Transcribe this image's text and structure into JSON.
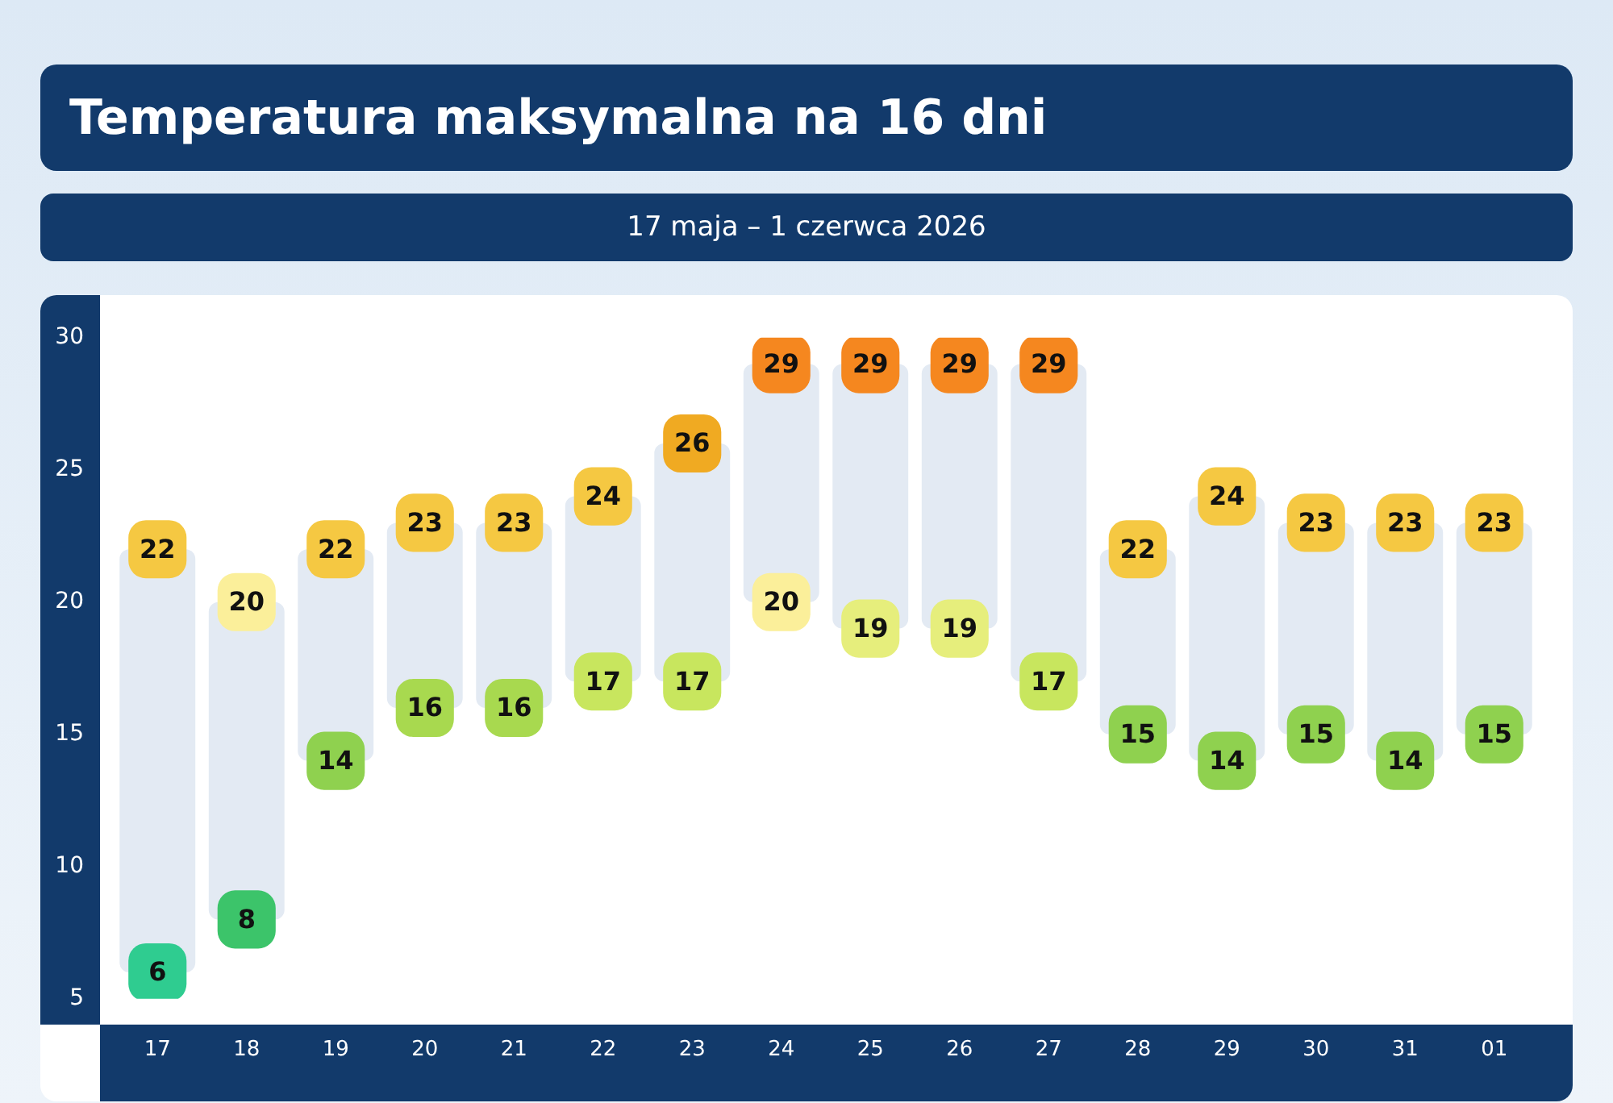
{
  "chart_data": {
    "type": "bar",
    "title": "Temperatura maksymalna na 16 dni",
    "subtitle": "17 maja – 1 czerwca 2026",
    "categories": [
      "17",
      "18",
      "19",
      "20",
      "21",
      "22",
      "23",
      "24",
      "25",
      "26",
      "27",
      "28",
      "29",
      "30",
      "31",
      "01"
    ],
    "ylim": [
      5,
      30
    ],
    "yticks": [
      5,
      10,
      15,
      20,
      25,
      30
    ],
    "grid": false,
    "legend": false,
    "series": [
      {
        "color": "#e3eaf3",
        "base": [
          6,
          8,
          14,
          16,
          16,
          17,
          17,
          20,
          19,
          19,
          17,
          15,
          14,
          15,
          14,
          15
        ],
        "values": [
          16,
          12,
          8,
          7,
          7,
          7,
          9,
          9,
          10,
          10,
          12,
          7,
          10,
          8,
          9,
          8
        ]
      },
      {
        "type": "scatter",
        "marker": "square",
        "values": [
          22,
          20,
          22,
          23,
          23,
          24,
          26,
          29,
          29,
          29,
          29,
          22,
          24,
          23,
          23,
          23
        ],
        "value_labels": [
          "22",
          "20",
          "22",
          "23",
          "23",
          "24",
          "26",
          "29",
          "29",
          "29",
          "29",
          "22",
          "24",
          "23",
          "23",
          "23"
        ],
        "colors": [
          "#f5c842",
          "#fbef9a",
          "#f5c842",
          "#f5c842",
          "#f5c842",
          "#f5c842",
          "#f0aa22",
          "#f5871f",
          "#f5871f",
          "#f5871f",
          "#f5871f",
          "#f5c842",
          "#f5c842",
          "#f5c842",
          "#f5c842",
          "#f5c842"
        ]
      },
      {
        "type": "scatter",
        "marker": "square",
        "values": [
          6,
          8,
          14,
          16,
          16,
          17,
          17,
          20,
          19,
          19,
          17,
          15,
          14,
          15,
          14,
          15
        ],
        "value_labels": [
          "6",
          "8",
          "14",
          "16",
          "16",
          "17",
          "17",
          "20",
          "19",
          "19",
          "17",
          "15",
          "14",
          "15",
          "14",
          "15"
        ],
        "colors": [
          "#2fcc90",
          "#3cc46a",
          "#8fd14f",
          "#a8d94f",
          "#a8d94f",
          "#c8e65e",
          "#c8e65e",
          "#fbef9a",
          "#e6ee7c",
          "#e6ee7c",
          "#c8e65e",
          "#8fd14f",
          "#8fd14f",
          "#8fd14f",
          "#8fd14f",
          "#8fd14f"
        ]
      }
    ]
  }
}
